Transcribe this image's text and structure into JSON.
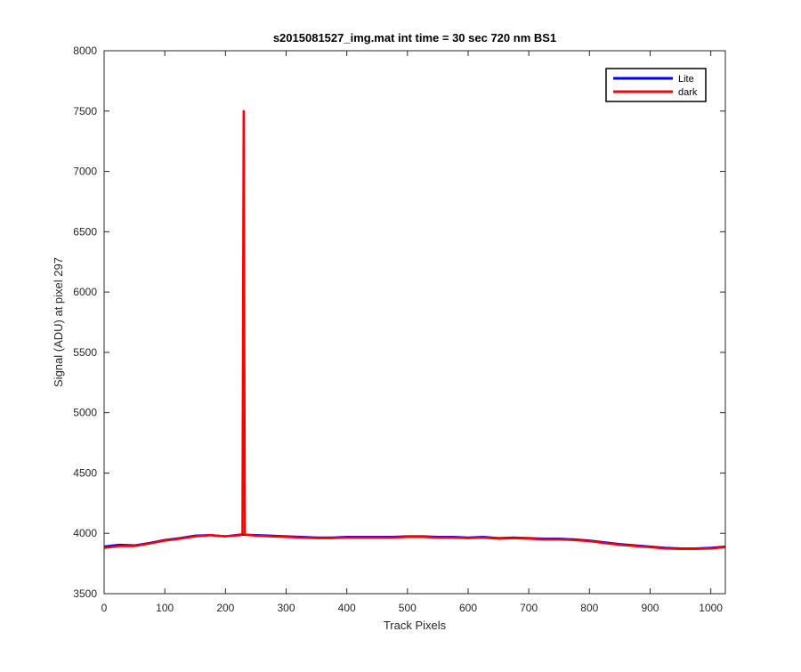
{
  "chart_data": {
    "type": "line",
    "title": "s2015081527_img.mat int time = 30 sec  720 nm BS1",
    "xlabel": "Track Pixels",
    "ylabel": "Signal (ADU) at pixel 297",
    "xlim": [
      0,
      1024
    ],
    "ylim": [
      3500,
      8000
    ],
    "xticks": [
      0,
      100,
      200,
      300,
      400,
      500,
      600,
      700,
      800,
      900,
      1000
    ],
    "yticks": [
      3500,
      4000,
      4500,
      5000,
      5500,
      6000,
      6500,
      7000,
      7500,
      8000
    ],
    "grid": false,
    "legend_position": "top-right",
    "series": [
      {
        "name": "Lite",
        "color": "#0000ff",
        "x": [
          0,
          25,
          50,
          75,
          100,
          125,
          150,
          175,
          200,
          225,
          250,
          275,
          300,
          325,
          350,
          375,
          400,
          425,
          450,
          475,
          500,
          525,
          550,
          575,
          600,
          625,
          650,
          675,
          700,
          725,
          750,
          775,
          800,
          825,
          850,
          875,
          900,
          925,
          950,
          975,
          1000,
          1024
        ],
        "y": [
          3890,
          3905,
          3900,
          3920,
          3945,
          3960,
          3980,
          3985,
          3975,
          3990,
          3985,
          3980,
          3975,
          3970,
          3965,
          3965,
          3970,
          3970,
          3970,
          3970,
          3975,
          3975,
          3970,
          3970,
          3965,
          3970,
          3960,
          3965,
          3960,
          3955,
          3955,
          3950,
          3940,
          3925,
          3910,
          3900,
          3890,
          3880,
          3875,
          3875,
          3880,
          3890
        ]
      },
      {
        "name": "dark",
        "color": "#ff0000",
        "x": [
          0,
          25,
          50,
          75,
          100,
          125,
          150,
          175,
          200,
          225,
          228,
          230,
          232,
          250,
          275,
          300,
          325,
          350,
          375,
          400,
          425,
          450,
          475,
          500,
          525,
          550,
          575,
          600,
          625,
          650,
          675,
          700,
          725,
          750,
          775,
          800,
          825,
          850,
          875,
          900,
          925,
          950,
          975,
          1000,
          1024
        ],
        "y": [
          3880,
          3895,
          3895,
          3915,
          3940,
          3955,
          3975,
          3985,
          3975,
          3985,
          4000,
          7500,
          3990,
          3980,
          3975,
          3970,
          3965,
          3960,
          3960,
          3965,
          3965,
          3965,
          3965,
          3970,
          3970,
          3965,
          3965,
          3960,
          3965,
          3955,
          3960,
          3955,
          3950,
          3950,
          3945,
          3935,
          3920,
          3905,
          3895,
          3885,
          3875,
          3870,
          3870,
          3875,
          3885
        ]
      }
    ]
  }
}
